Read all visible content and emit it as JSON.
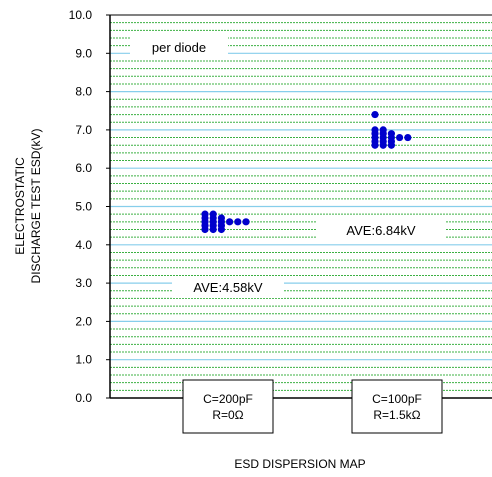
{
  "chart_data": {
    "type": "scatter",
    "title": "",
    "xlabel": "ESD DISPERSION MAP",
    "ylabel_line1": "ELECTROSTATIC",
    "ylabel_line2": "DISCHARGE TEST ESD(kV)",
    "ylim": [
      0,
      10
    ],
    "yticks": [
      "0.0",
      "1.0",
      "2.0",
      "3.0",
      "4.0",
      "5.0",
      "6.0",
      "7.0",
      "8.0",
      "9.0",
      "10.0"
    ],
    "major_grid_color": "#87ceeb",
    "minor_grid_color": "#3cb043",
    "marker_color": "#0000cc",
    "categories": [
      {
        "line1": "C=200pF",
        "line2": "R=0Ω"
      },
      {
        "line1": "C=100pF",
        "line2": "R=1.5kΩ"
      }
    ],
    "series": [
      {
        "category_index": 0,
        "points": [
          {
            "y": 4.4,
            "count": 3
          },
          {
            "y": 4.5,
            "count": 3
          },
          {
            "y": 4.6,
            "count": 6
          },
          {
            "y": 4.7,
            "count": 3
          },
          {
            "y": 4.8,
            "count": 2
          }
        ]
      },
      {
        "category_index": 1,
        "points": [
          {
            "y": 6.6,
            "count": 3
          },
          {
            "y": 6.7,
            "count": 3
          },
          {
            "y": 6.8,
            "count": 5
          },
          {
            "y": 6.9,
            "count": 3
          },
          {
            "y": 7.0,
            "count": 2
          },
          {
            "y": 7.4,
            "count": 1
          }
        ]
      }
    ],
    "annotations": {
      "note": "per diode",
      "ave_1": "AVE:4.58kV",
      "ave_2": "AVE:6.84kV"
    }
  }
}
